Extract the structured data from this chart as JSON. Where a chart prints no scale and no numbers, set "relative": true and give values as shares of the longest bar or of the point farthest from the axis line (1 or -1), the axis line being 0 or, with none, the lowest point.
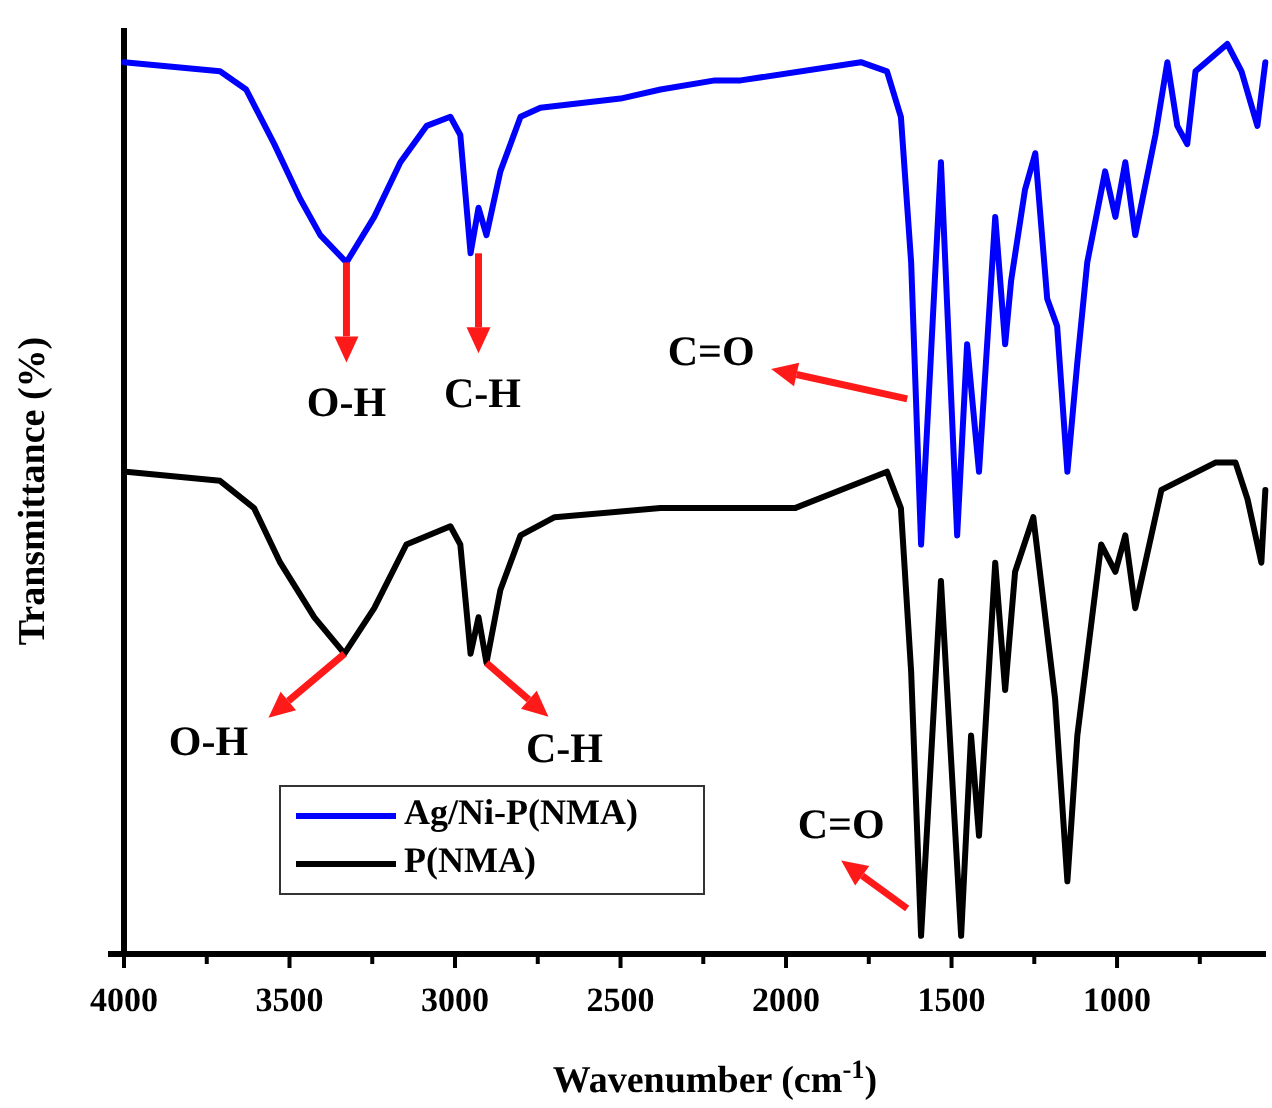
{
  "chart_data": {
    "type": "line",
    "xlabel": "Wavenumber (cm$^{-1}$)",
    "ylabel": "Transmittance (%)",
    "relative": true,
    "xlim": [
      4000,
      550
    ],
    "xticks": [
      4000,
      {
        "value": 3750,
        "label": null
      },
      3500,
      {
        "value": 3250,
        "label": null
      },
      3000,
      {
        "value": 2750,
        "label": null
      },
      2500,
      {
        "value": 2250,
        "label": null
      },
      2000,
      {
        "value": 1750,
        "label": null
      },
      1500,
      {
        "value": 1250,
        "label": null
      },
      1000,
      {
        "value": 750,
        "label": null
      }
    ],
    "legend": "bottom left",
    "grid": false,
    "line_style": "solid",
    "marker": "none",
    "x": [
      4000,
      3710,
      3631,
      3546,
      3468,
      3407,
      3328,
      3244,
      3165,
      3086,
      3014,
      2984,
      2953,
      2929,
      2905,
      2863,
      2802,
      2742,
      2500,
      2379,
      2215,
      2137,
      1774,
      1695,
      1653,
      1622,
      1592,
      1532,
      1483,
      1453,
      1417,
      1368,
      1338,
      1320,
      1278,
      1247,
      1211,
      1181,
      1150,
      1120,
      1090,
      1036,
      1005,
      975,
      945,
      884,
      848,
      818,
      788,
      763,
      667,
      624,
      576,
      552
    ],
    "series": [
      {
        "name": "Ag/Ni-P(NMA)",
        "color": "#0000ff",
        "values": [
          0.98,
          0.97,
          0.95,
          0.89,
          0.83,
          0.79,
          0.76,
          0.81,
          0.87,
          0.91,
          0.92,
          0.9,
          0.77,
          0.82,
          0.79,
          0.86,
          0.92,
          0.93,
          0.94,
          0.95,
          0.96,
          0.96,
          0.98,
          0.97,
          0.92,
          0.76,
          0.45,
          0.87,
          0.46,
          0.67,
          0.53,
          0.81,
          0.67,
          0.74,
          0.84,
          0.88,
          0.72,
          0.69,
          0.53,
          0.65,
          0.76,
          0.86,
          0.81,
          0.87,
          0.79,
          0.9,
          0.98,
          0.91,
          0.89,
          0.97,
          1.0,
          0.97,
          0.91,
          0.98
        ]
      },
      {
        "name": "P(NMA)",
        "color": "#000000",
        "x": [
          3994,
          3710,
          3607,
          3528,
          3425,
          3334,
          3244,
          3147,
          3014,
          2984,
          2953,
          2929,
          2905,
          2863,
          2802,
          2699,
          2379,
          2239,
          1973,
          1695,
          1653,
          1622,
          1592,
          1532,
          1471,
          1441,
          1417,
          1368,
          1338,
          1308,
          1253,
          1187,
          1150,
          1120,
          1048,
          1005,
          975,
          945,
          866,
          703,
          642,
          606,
          564,
          552
        ],
        "values": [
          0.53,
          0.52,
          0.49,
          0.43,
          0.37,
          0.33,
          0.38,
          0.45,
          0.47,
          0.45,
          0.33,
          0.37,
          0.32,
          0.4,
          0.46,
          0.48,
          0.49,
          0.49,
          0.49,
          0.53,
          0.49,
          0.31,
          0.02,
          0.41,
          0.02,
          0.24,
          0.13,
          0.43,
          0.29,
          0.42,
          0.48,
          0.28,
          0.08,
          0.24,
          0.45,
          0.42,
          0.46,
          0.38,
          0.51,
          0.54,
          0.54,
          0.5,
          0.43,
          0.51
        ]
      }
    ],
    "annotations": [
      {
        "text": "O-H",
        "x": 3328,
        "y": 0.76
      },
      {
        "text": "C-H",
        "x": 2929,
        "y": 0.77
      },
      {
        "text": "C=O",
        "x": 1634,
        "y": 0.61
      },
      {
        "text": "O-H",
        "x": 3334,
        "y": 0.33
      },
      {
        "text": "C-H",
        "x": 2905,
        "y": 0.32
      },
      {
        "text": "C=O",
        "x": 1634,
        "y": 0.05
      }
    ]
  }
}
